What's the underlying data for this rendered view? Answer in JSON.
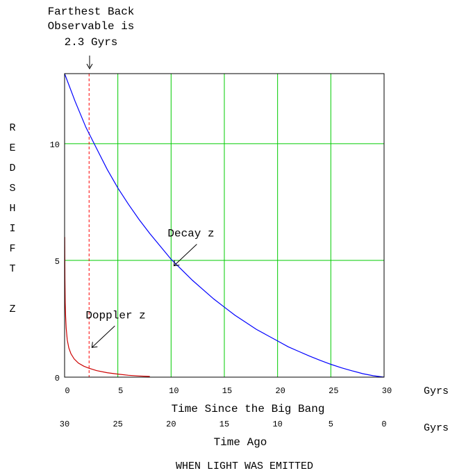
{
  "chart_data": {
    "type": "line",
    "title_annotation": [
      "Farthest Back",
      "Observable is",
      "2.3 Gyrs"
    ],
    "ylabel_letters": [
      "R",
      "E",
      "D",
      "S",
      "H",
      "I",
      "F",
      "T",
      "",
      "Z"
    ],
    "xlabel": "Time Since the Big Bang",
    "xlabel2": "Time Ago",
    "footer": "WHEN LIGHT WAS EMITTED",
    "x_unit": "Gyrs",
    "xlim": [
      0,
      30
    ],
    "ylim": [
      0,
      13
    ],
    "x_ticks": [
      "0",
      "5",
      "10",
      "15",
      "20",
      "25",
      "30"
    ],
    "x2_ticks": [
      "30",
      "25",
      "20",
      "15",
      "10",
      "5",
      "0"
    ],
    "y_ticks": [
      "0",
      "5",
      "10"
    ],
    "grid": true,
    "observable_limit_x": 2.3,
    "series": [
      {
        "name": "Decay z",
        "color": "#0000ff",
        "x": [
          0,
          1,
          2,
          3,
          4,
          5,
          6,
          7,
          8,
          9,
          10,
          11,
          12,
          13,
          14,
          15,
          16,
          17,
          18,
          19,
          20,
          21,
          22,
          23,
          24,
          25,
          26,
          27,
          28,
          29,
          30
        ],
        "y": [
          13.0,
          11.8,
          10.7,
          9.8,
          8.9,
          8.1,
          7.4,
          6.75,
          6.15,
          5.6,
          5.05,
          4.6,
          4.15,
          3.75,
          3.35,
          3.0,
          2.65,
          2.35,
          2.05,
          1.8,
          1.55,
          1.3,
          1.1,
          0.9,
          0.72,
          0.55,
          0.4,
          0.27,
          0.15,
          0.06,
          0.0
        ]
      },
      {
        "name": "Doppler z",
        "color": "#cc0000",
        "x": [
          0.01,
          0.03,
          0.06,
          0.1,
          0.15,
          0.25,
          0.4,
          0.6,
          0.9,
          1.3,
          1.8,
          2.3,
          3,
          4,
          5,
          6,
          7,
          8
        ],
        "y": [
          6.0,
          4.2,
          3.2,
          2.6,
          2.1,
          1.6,
          1.25,
          1.0,
          0.78,
          0.6,
          0.47,
          0.38,
          0.28,
          0.19,
          0.13,
          0.08,
          0.05,
          0.03
        ]
      }
    ],
    "annotations": [
      {
        "text": "Decay z",
        "x": 10.2,
        "y": 4.8
      },
      {
        "text": "Doppler z",
        "x": 2.5,
        "y": 1.3
      }
    ]
  }
}
